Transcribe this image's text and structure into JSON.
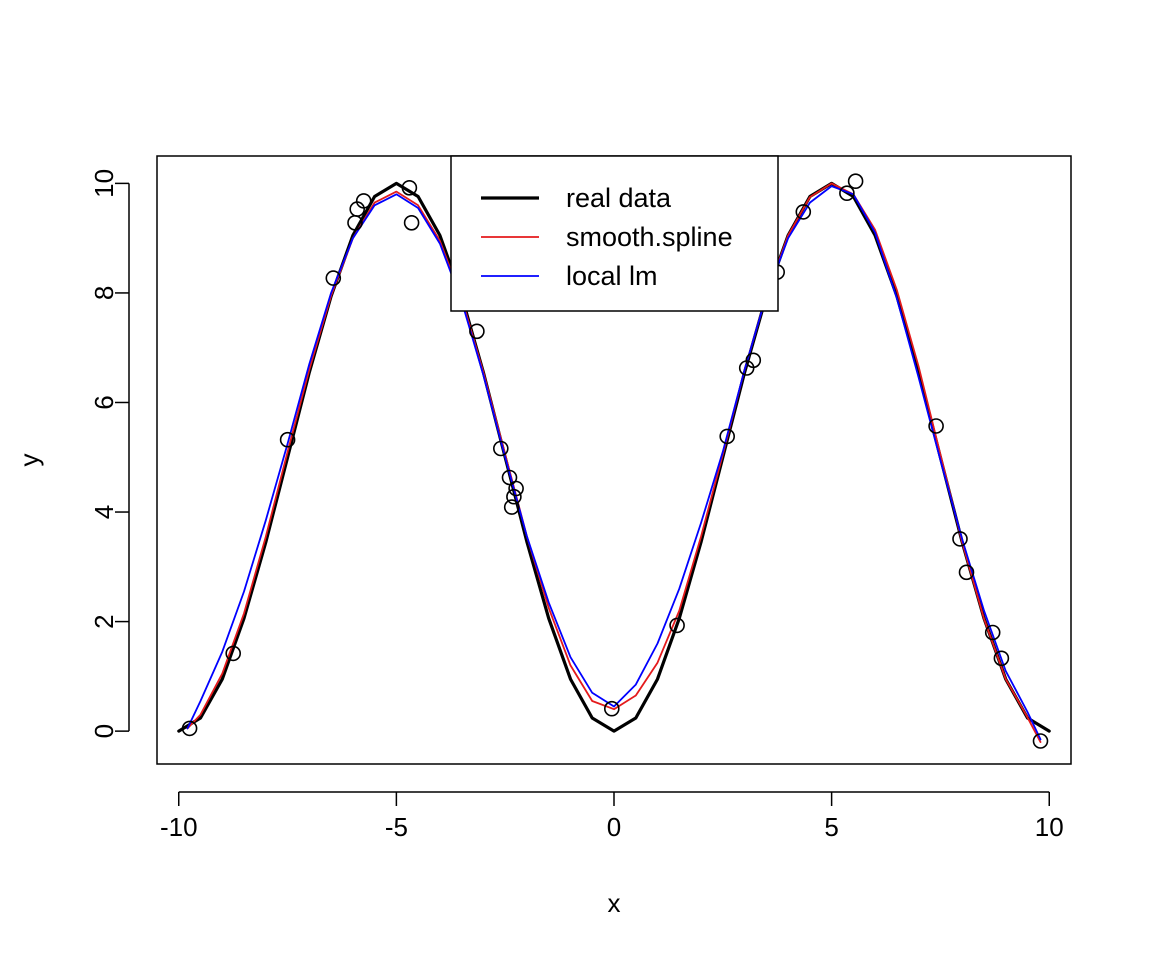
{
  "chart_data": {
    "type": "line",
    "xlabel": "x",
    "ylabel": "y",
    "xlim": [
      -10.5,
      10.5
    ],
    "ylim": [
      -0.6,
      10.5
    ],
    "x_ticks": [
      -10,
      -5,
      0,
      5,
      10
    ],
    "x_tick_labels": [
      "-10",
      "-5",
      "0",
      "5",
      "10"
    ],
    "y_ticks": [
      0,
      2,
      4,
      6,
      8,
      10
    ],
    "y_tick_labels": [
      "0",
      "2",
      "4",
      "6",
      "8",
      "10"
    ],
    "grid": false,
    "legend_position": "top-center",
    "legend": [
      {
        "label": "real data",
        "color": "#000000"
      },
      {
        "label": "smooth.spline",
        "color": "#e41a1c"
      },
      {
        "label": "local lm",
        "color": "#0000ff"
      }
    ],
    "series": [
      {
        "name": "real data",
        "color": "#000000",
        "x": [
          -10,
          -9.5,
          -9,
          -8.5,
          -8,
          -7.5,
          -7,
          -6.5,
          -6,
          -5.5,
          -5,
          -4.5,
          -4,
          -3.5,
          -3,
          -2.5,
          -2,
          -1.5,
          -1,
          -0.5,
          0,
          0.5,
          1,
          1.5,
          2,
          2.5,
          3,
          3.5,
          4,
          4.5,
          5,
          5.5,
          6,
          6.5,
          7,
          7.5,
          8,
          8.5,
          9,
          9.5,
          10
        ],
        "y": [
          0.0,
          0.24,
          0.95,
          2.06,
          3.45,
          5.0,
          6.55,
          7.94,
          9.05,
          9.76,
          10.0,
          9.76,
          9.05,
          7.94,
          6.55,
          5.0,
          3.45,
          2.06,
          0.95,
          0.24,
          0.0,
          0.24,
          0.95,
          2.06,
          3.45,
          5.0,
          6.55,
          7.94,
          9.05,
          9.76,
          10.0,
          9.76,
          9.05,
          7.94,
          6.55,
          5.0,
          3.45,
          2.06,
          0.95,
          0.24,
          0.0
        ]
      },
      {
        "name": "smooth.spline",
        "color": "#e41a1c",
        "x": [
          -9.8,
          -9.5,
          -9,
          -8.5,
          -8,
          -7.5,
          -7,
          -6.5,
          -6,
          -5.5,
          -5,
          -4.5,
          -4,
          -3.5,
          -3,
          -2.5,
          -2,
          -1.5,
          -1,
          -0.5,
          0,
          0.5,
          1,
          1.5,
          2,
          2.5,
          3,
          3.5,
          4,
          4.5,
          5,
          5.5,
          6,
          6.5,
          7,
          7.5,
          8,
          8.5,
          9,
          9.5,
          9.8
        ],
        "y": [
          0.05,
          0.3,
          1.05,
          2.15,
          3.55,
          5.1,
          6.6,
          7.95,
          9.0,
          9.65,
          9.85,
          9.6,
          8.95,
          7.9,
          6.55,
          5.05,
          3.55,
          2.25,
          1.2,
          0.55,
          0.4,
          0.65,
          1.25,
          2.2,
          3.55,
          5.05,
          6.6,
          7.95,
          9.05,
          9.75,
          10.0,
          9.8,
          9.15,
          8.05,
          6.65,
          5.05,
          3.45,
          2.05,
          0.95,
          0.25,
          -0.2
        ]
      },
      {
        "name": "local lm",
        "color": "#0000ff",
        "x": [
          -9.8,
          -9.5,
          -9,
          -8.5,
          -8,
          -7.5,
          -7,
          -6.5,
          -6,
          -5.5,
          -5,
          -4.5,
          -4,
          -3.5,
          -3,
          -2.5,
          -2,
          -1.5,
          -1,
          -0.5,
          0,
          0.5,
          1,
          1.5,
          2,
          2.5,
          3,
          3.5,
          4,
          4.5,
          5,
          5.5,
          6,
          6.5,
          7,
          7.5,
          8,
          8.5,
          9,
          9.5,
          9.8
        ],
        "y": [
          0.05,
          0.55,
          1.45,
          2.55,
          3.85,
          5.25,
          6.7,
          8.0,
          9.0,
          9.6,
          9.8,
          9.55,
          8.9,
          7.85,
          6.5,
          5.0,
          3.55,
          2.35,
          1.35,
          0.7,
          0.45,
          0.85,
          1.6,
          2.6,
          3.8,
          5.1,
          6.6,
          7.95,
          9.0,
          9.65,
          9.95,
          9.8,
          9.1,
          7.9,
          6.45,
          4.95,
          3.5,
          2.2,
          1.1,
          0.35,
          -0.15
        ]
      }
    ],
    "points": {
      "name": "observations",
      "x": [
        -9.75,
        -8.75,
        -7.5,
        -6.45,
        -5.95,
        -5.9,
        -5.75,
        -4.7,
        -4.65,
        -3.15,
        -2.6,
        -2.4,
        -2.35,
        -2.3,
        -2.25,
        -0.05,
        1.45,
        2.6,
        3.05,
        3.2,
        3.75,
        4.35,
        5.35,
        5.55,
        7.4,
        7.95,
        8.1,
        8.7,
        8.9,
        9.8
      ],
      "y": [
        0.05,
        1.42,
        5.32,
        8.27,
        9.28,
        9.53,
        9.68,
        9.92,
        9.28,
        7.3,
        5.16,
        4.63,
        4.09,
        4.28,
        4.43,
        0.41,
        1.93,
        5.38,
        6.63,
        6.77,
        8.38,
        9.48,
        9.82,
        10.04,
        5.57,
        3.51,
        2.9,
        1.8,
        1.33,
        -0.18
      ]
    }
  }
}
